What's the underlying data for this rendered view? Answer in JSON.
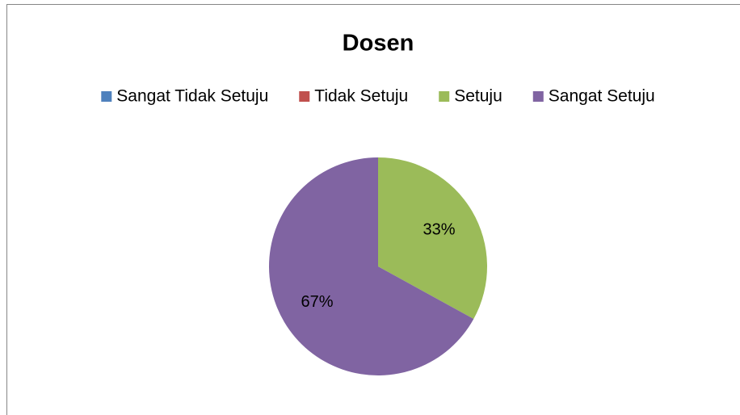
{
  "chart_data": {
    "type": "pie",
    "title": "Dosen",
    "categories": [
      "Sangat Tidak Setuju",
      "Tidak Setuju",
      "Setuju",
      "Sangat Setuju"
    ],
    "values": [
      0,
      0,
      33,
      67
    ],
    "value_labels": [
      null,
      null,
      "33%",
      "67%"
    ],
    "colors": [
      "#4f81bd",
      "#c0504d",
      "#9bbb59",
      "#8064a2"
    ],
    "legend": "top"
  }
}
